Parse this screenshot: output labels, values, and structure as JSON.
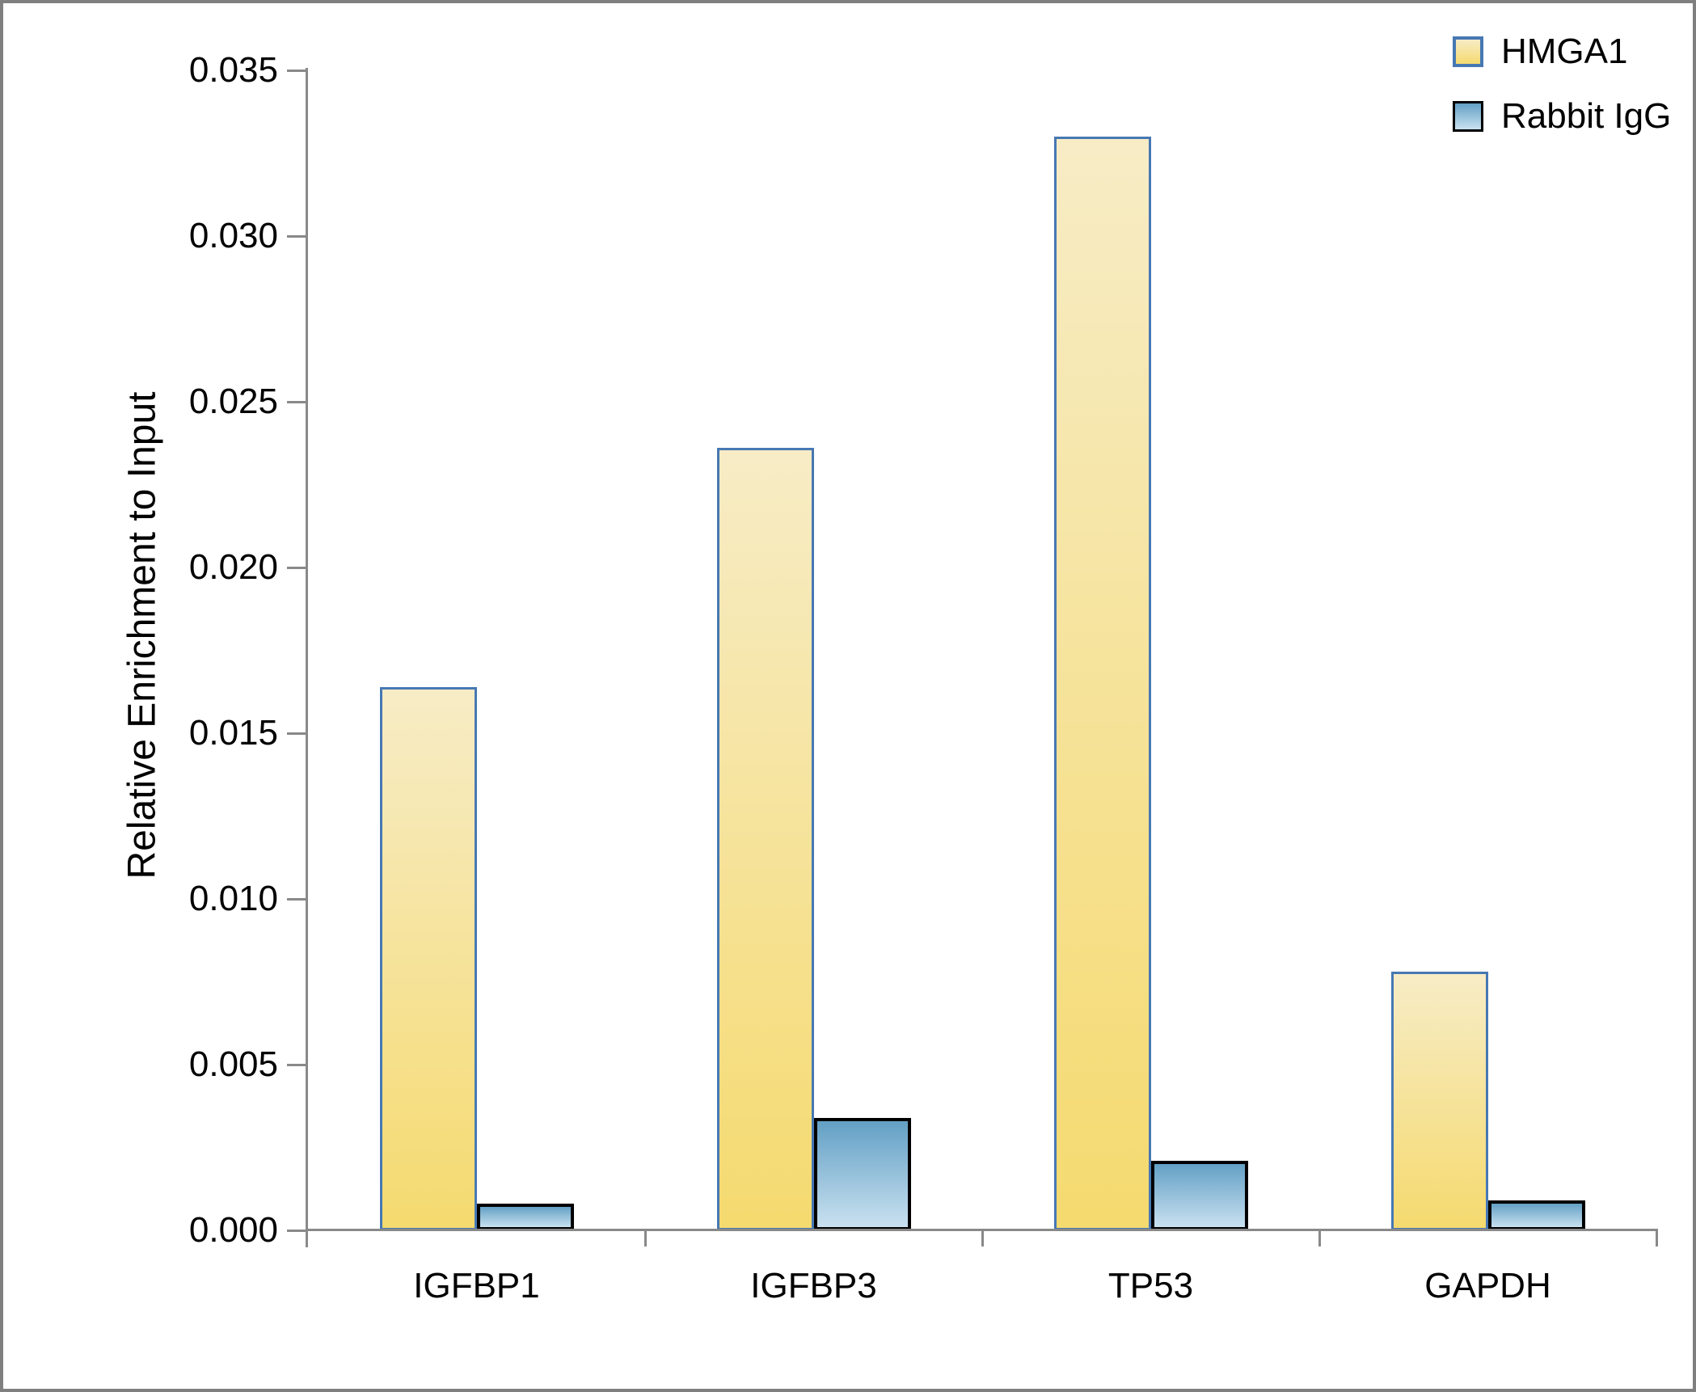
{
  "chart_data": {
    "type": "bar",
    "title": "",
    "categories": [
      "IGFBP1",
      "IGFBP3",
      "TP53",
      "GAPDH"
    ],
    "series": [
      {
        "name": "HMGA1",
        "values": [
          0.0164,
          0.0236,
          0.033,
          0.0078
        ],
        "fill_top": "#F7ECC6",
        "fill_bottom": "#F5DA6F",
        "border_color": "#4778B3"
      },
      {
        "name": "Rabbit IgG",
        "values": [
          0.0008,
          0.0034,
          0.0021,
          0.0009
        ],
        "fill_top": "#63A0C5",
        "fill_bottom": "#C9E1F0",
        "border_color": "#000000"
      }
    ],
    "xlabel": "",
    "ylabel": "Relative Enrichment to Input",
    "ylim": [
      0,
      0.035
    ],
    "yticks": [
      "0.000",
      "0.005",
      "0.010",
      "0.015",
      "0.020",
      "0.025",
      "0.030",
      "0.035"
    ],
    "legend_position": "top-right",
    "grid": false,
    "axis_color": "#898989",
    "text_color": "#000000",
    "frame_color": "#7F7F7F"
  }
}
